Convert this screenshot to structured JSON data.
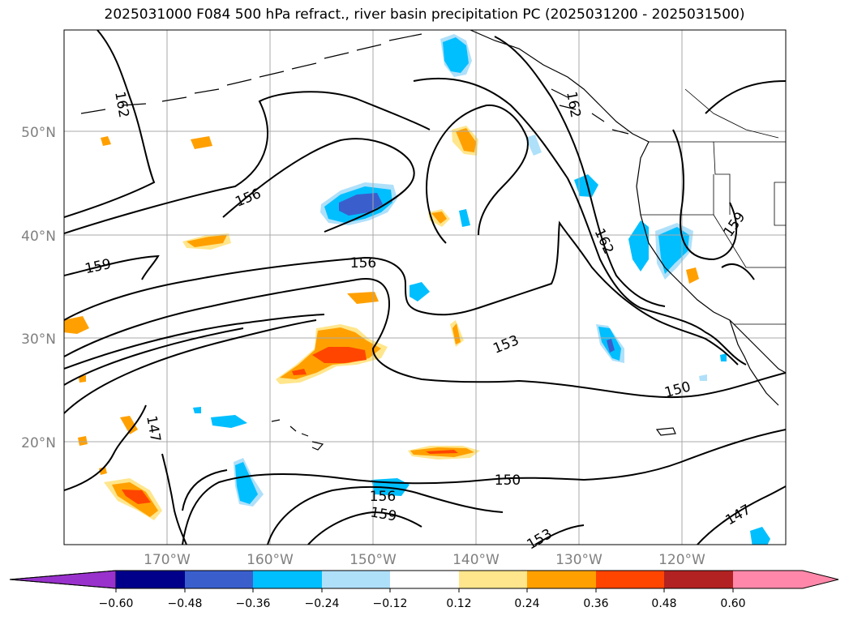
{
  "title": "2025031000 F084 500 hPa refract., river basin precipitation PC (2025031200 - 2025031500)",
  "map": {
    "lat_labels": [
      "50°N",
      "40°N",
      "30°N",
      "20°N"
    ],
    "lon_labels": [
      "170°W",
      "160°W",
      "150°W",
      "140°W",
      "130°W",
      "120°W"
    ],
    "label_color": "#808080",
    "contour_labels": [
      "162",
      "156",
      "159",
      "156",
      "153",
      "150",
      "147",
      "150",
      "156",
      "159",
      "162",
      "159",
      "147",
      "153",
      "162"
    ]
  },
  "colorbar": {
    "tick_labels": [
      "−0.60",
      "−0.48",
      "−0.36",
      "−0.24",
      "−0.12",
      "0.12",
      "0.24",
      "0.36",
      "0.48",
      "0.60"
    ],
    "colors": [
      "#9932cc",
      "#00008b",
      "#3a5fcd",
      "#00bfff",
      "#afe0fa",
      "#ffffff",
      "#ffe68c",
      "#ffa000",
      "#ff4500",
      "#b22222",
      "#ff88aa"
    ]
  }
}
